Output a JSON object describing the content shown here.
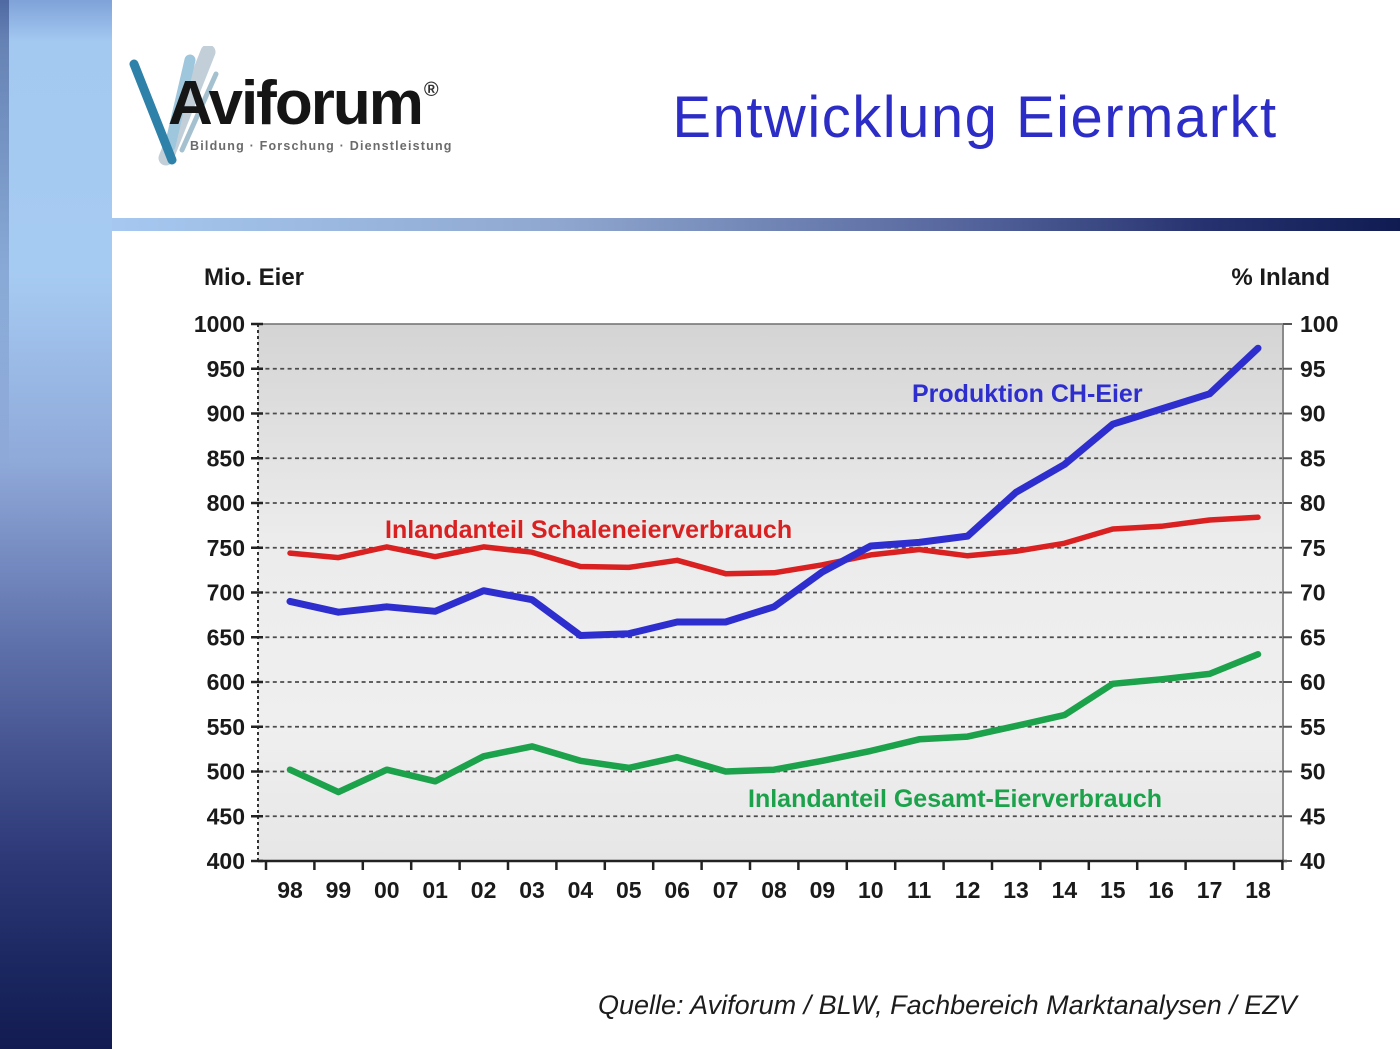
{
  "slide": {
    "title": "Entwicklung Eiermarkt",
    "source": "Quelle: Aviforum / BLW, Fachbereich Marktanalysen  / EZV"
  },
  "logo": {
    "brand": "Aviforum",
    "trademark": "®",
    "tagline": "Bildung · Forschung · Dienstleistung"
  },
  "chart_data": {
    "type": "line",
    "title": "Entwicklung Eiermarkt",
    "x": [
      "98",
      "99",
      "00",
      "01",
      "02",
      "03",
      "04",
      "05",
      "06",
      "07",
      "08",
      "09",
      "10",
      "11",
      "12",
      "13",
      "14",
      "15",
      "16",
      "17",
      "18"
    ],
    "left_axis": {
      "title": "Mio. Eier",
      "min": 400,
      "max": 1000,
      "step": 50,
      "ticks": [
        "1000",
        "950",
        "900",
        "850",
        "800",
        "750",
        "700",
        "650",
        "600",
        "550",
        "500",
        "450",
        "400"
      ]
    },
    "right_axis": {
      "title": "% Inland",
      "min": 40,
      "max": 100,
      "step": 5,
      "ticks": [
        "100",
        "95",
        "90",
        "85",
        "80",
        "75",
        "70",
        "65",
        "60",
        "55",
        "50",
        "45",
        "40"
      ]
    },
    "grid": "horizontal dashed every 50 (left scale)",
    "legend": "inline colored labels next to lines",
    "series": [
      {
        "name": "Produktion CH-Eier",
        "axis": "left",
        "unit": "Mio. Eier",
        "color": "#2E2ECF",
        "values": [
          690,
          678,
          684,
          679,
          702,
          692,
          652,
          654,
          667,
          667,
          684,
          723,
          752,
          756,
          763,
          812,
          843,
          888,
          905,
          922,
          973
        ]
      },
      {
        "name": "Inlandanteil Schaleneierverbrauch",
        "axis": "right",
        "unit": "%",
        "color": "#D92121",
        "values": [
          74.4,
          73.9,
          75.1,
          74.0,
          75.1,
          74.5,
          72.9,
          72.8,
          73.6,
          72.1,
          72.2,
          73.1,
          74.2,
          74.8,
          74.1,
          74.6,
          75.5,
          77.1,
          77.4,
          78.1,
          78.4
        ]
      },
      {
        "name": "Inlandanteil Gesamt-Eierverbrauch",
        "axis": "right",
        "unit": "%",
        "color": "#1BA24A",
        "values": [
          50.2,
          47.7,
          50.2,
          48.9,
          51.7,
          52.8,
          51.2,
          50.4,
          51.6,
          50.0,
          50.2,
          51.2,
          52.3,
          53.6,
          53.9,
          55.1,
          56.3,
          59.8,
          60.3,
          60.9,
          63.1
        ]
      }
    ]
  }
}
